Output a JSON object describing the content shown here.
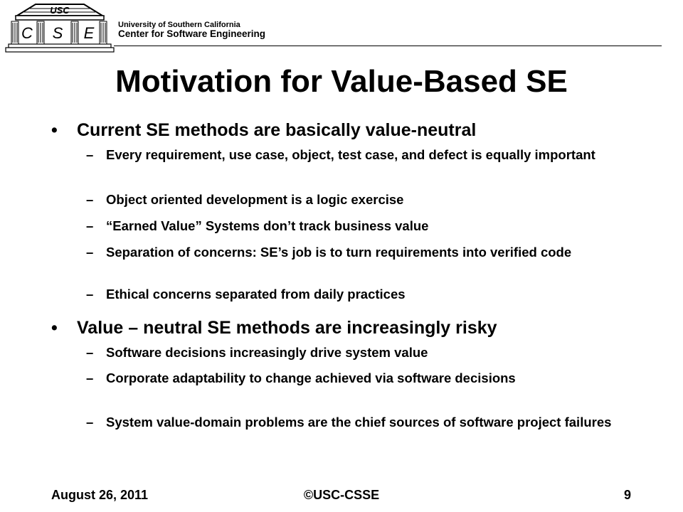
{
  "header": {
    "university": "University of Southern California",
    "center": "Center for Software Engineering",
    "logo": {
      "top_text": "USC",
      "letters": [
        "C",
        "S",
        "E"
      ]
    }
  },
  "slide": {
    "title": "Motivation for Value-Based SE",
    "bullets": [
      {
        "text": "Current SE methods are basically value-neutral",
        "subs": [
          "Every requirement, use case, object, test case, and defect is equally important",
          "Object oriented development is a logic exercise",
          "“Earned Value” Systems don’t track business value",
          "Separation of concerns: SE’s job is to turn requirements into verified code",
          "Ethical concerns separated from daily practices"
        ]
      },
      {
        "text": "Value – neutral SE methods are increasingly risky",
        "subs": [
          "Software decisions increasingly drive system value",
          "Corporate adaptability to change achieved via software decisions",
          "System value-domain problems are the chief sources of software project failures"
        ]
      }
    ]
  },
  "footer": {
    "date": "August 26, 2011",
    "copyright": "©USC-CSSE",
    "page": "9"
  }
}
